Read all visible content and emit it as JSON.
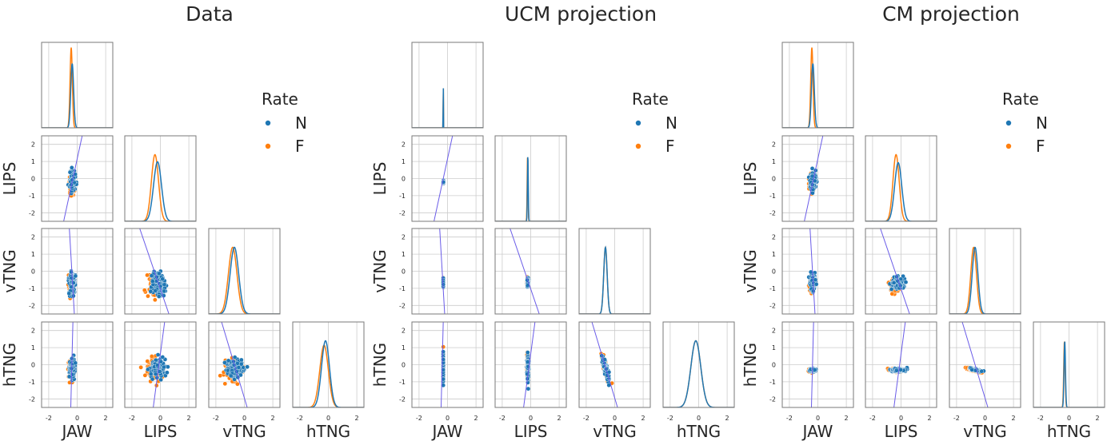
{
  "figure": {
    "legend_title": "Rate",
    "legend_entries": [
      {
        "label": "N",
        "color": "#1f77b4"
      },
      {
        "label": "F",
        "color": "#ff7f0e"
      }
    ],
    "variables": [
      "JAW",
      "LIPS",
      "vTNG",
      "hTNG"
    ],
    "axis_ticks": [
      "-2",
      "0",
      "2"
    ],
    "y_ticks": [
      "2",
      "1",
      "0",
      "-1",
      "-2"
    ]
  },
  "chart_data": [
    {
      "type": "scatter",
      "title": "Data",
      "layout": "pairplot-lower-triangle",
      "variables": [
        "JAW",
        "LIPS",
        "vTNG",
        "hTNG"
      ],
      "xlim": [
        -2.5,
        2.5
      ],
      "ylim": [
        -2.5,
        2.5
      ],
      "grid": true,
      "legend_position": "upper-right",
      "series": [
        {
          "name": "N",
          "color": "#1f77b4",
          "means": {
            "JAW": -0.35,
            "LIPS": -0.2,
            "vTNG": -0.7,
            "hTNG": -0.2
          },
          "sds": {
            "JAW": 0.1,
            "LIPS": 0.28,
            "vTNG": 0.3,
            "hTNG": 0.28
          }
        },
        {
          "name": "F",
          "color": "#ff7f0e",
          "means": {
            "JAW": -0.42,
            "LIPS": -0.38,
            "vTNG": -0.82,
            "hTNG": -0.3
          },
          "sds": {
            "JAW": 0.08,
            "LIPS": 0.25,
            "vTNG": 0.3,
            "hTNG": 0.3
          }
        }
      ],
      "reference_lines": [
        {
          "x_var": "JAW",
          "y_var": "LIPS",
          "points": [
            [
              -0.95,
              -2.5
            ],
            [
              0.35,
              2.5
            ]
          ]
        },
        {
          "x_var": "JAW",
          "y_var": "vTNG",
          "points": [
            [
              -0.55,
              2.5
            ],
            [
              -0.2,
              -2.5
            ]
          ]
        },
        {
          "x_var": "JAW",
          "y_var": "hTNG",
          "points": [
            [
              -0.3,
              2.5
            ],
            [
              -0.45,
              -2.5
            ]
          ]
        },
        {
          "x_var": "LIPS",
          "y_var": "vTNG",
          "points": [
            [
              -1.45,
              2.5
            ],
            [
              0.6,
              -2.5
            ]
          ]
        },
        {
          "x_var": "LIPS",
          "y_var": "hTNG",
          "points": [
            [
              -0.5,
              -2.5
            ],
            [
              0.3,
              2.5
            ]
          ]
        },
        {
          "x_var": "vTNG",
          "y_var": "hTNG",
          "points": [
            [
              -1.6,
              2.5
            ],
            [
              0.2,
              -2.5
            ]
          ]
        }
      ]
    },
    {
      "type": "scatter",
      "title": "UCM projection",
      "layout": "pairplot-lower-triangle",
      "variables": [
        "JAW",
        "LIPS",
        "vTNG",
        "hTNG"
      ],
      "xlim": [
        -2.5,
        2.5
      ],
      "ylim": [
        -2.5,
        2.5
      ],
      "grid": true,
      "legend_position": "upper-right",
      "series": [
        {
          "name": "N",
          "color": "#1f77b4",
          "means": {
            "JAW": -0.3,
            "LIPS": -0.2,
            "vTNG": -0.65,
            "hTNG": -0.2
          },
          "sds": {
            "JAW": 0.007,
            "LIPS": 0.03,
            "vTNG": 0.12,
            "hTNG": 0.35
          }
        },
        {
          "name": "F",
          "color": "#ff7f0e",
          "means": {
            "JAW": -0.3,
            "LIPS": -0.22,
            "vTNG": -0.65,
            "hTNG": -0.2
          },
          "sds": {
            "JAW": 0.007,
            "LIPS": 0.03,
            "vTNG": 0.12,
            "hTNG": 0.35
          }
        }
      ],
      "reference_lines": [
        {
          "x_var": "JAW",
          "y_var": "LIPS",
          "points": [
            [
              -0.95,
              -2.5
            ],
            [
              0.35,
              2.5
            ]
          ]
        },
        {
          "x_var": "JAW",
          "y_var": "vTNG",
          "points": [
            [
              -0.55,
              2.5
            ],
            [
              -0.2,
              -2.5
            ]
          ]
        },
        {
          "x_var": "JAW",
          "y_var": "hTNG",
          "points": [
            [
              -0.3,
              2.5
            ],
            [
              -0.45,
              -2.5
            ]
          ]
        },
        {
          "x_var": "LIPS",
          "y_var": "vTNG",
          "points": [
            [
              -1.45,
              2.5
            ],
            [
              0.6,
              -2.5
            ]
          ]
        },
        {
          "x_var": "LIPS",
          "y_var": "hTNG",
          "points": [
            [
              -0.5,
              -2.5
            ],
            [
              0.3,
              2.5
            ]
          ]
        },
        {
          "x_var": "vTNG",
          "y_var": "hTNG",
          "points": [
            [
              -1.6,
              2.5
            ],
            [
              0.2,
              -2.5
            ]
          ]
        }
      ]
    },
    {
      "type": "scatter",
      "title": "CM projection",
      "layout": "pairplot-lower-triangle",
      "variables": [
        "JAW",
        "LIPS",
        "vTNG",
        "hTNG"
      ],
      "xlim": [
        -2.5,
        2.5
      ],
      "ylim": [
        -2.5,
        2.5
      ],
      "grid": true,
      "legend_position": "upper-right",
      "series": [
        {
          "name": "N",
          "color": "#1f77b4",
          "means": {
            "JAW": -0.35,
            "LIPS": -0.2,
            "vTNG": -0.7,
            "hTNG": -0.3
          },
          "sds": {
            "JAW": 0.1,
            "LIPS": 0.25,
            "vTNG": 0.2,
            "hTNG": 0.05
          }
        },
        {
          "name": "F",
          "color": "#ff7f0e",
          "means": {
            "JAW": -0.42,
            "LIPS": -0.35,
            "vTNG": -0.8,
            "hTNG": -0.32
          },
          "sds": {
            "JAW": 0.08,
            "LIPS": 0.22,
            "vTNG": 0.2,
            "hTNG": 0.05
          }
        }
      ],
      "reference_lines": [
        {
          "x_var": "JAW",
          "y_var": "LIPS",
          "points": [
            [
              -0.95,
              -2.5
            ],
            [
              0.35,
              2.5
            ]
          ]
        },
        {
          "x_var": "JAW",
          "y_var": "vTNG",
          "points": [
            [
              -0.55,
              2.5
            ],
            [
              -0.2,
              -2.5
            ]
          ]
        },
        {
          "x_var": "JAW",
          "y_var": "hTNG",
          "points": [
            [
              -0.3,
              2.5
            ],
            [
              -0.45,
              -2.5
            ]
          ]
        },
        {
          "x_var": "LIPS",
          "y_var": "vTNG",
          "points": [
            [
              -1.45,
              2.5
            ],
            [
              0.6,
              -2.5
            ]
          ]
        },
        {
          "x_var": "LIPS",
          "y_var": "hTNG",
          "points": [
            [
              -0.5,
              -2.5
            ],
            [
              0.3,
              2.5
            ]
          ]
        },
        {
          "x_var": "vTNG",
          "y_var": "hTNG",
          "points": [
            [
              -1.6,
              2.5
            ],
            [
              0.2,
              -2.5
            ]
          ]
        }
      ]
    }
  ]
}
